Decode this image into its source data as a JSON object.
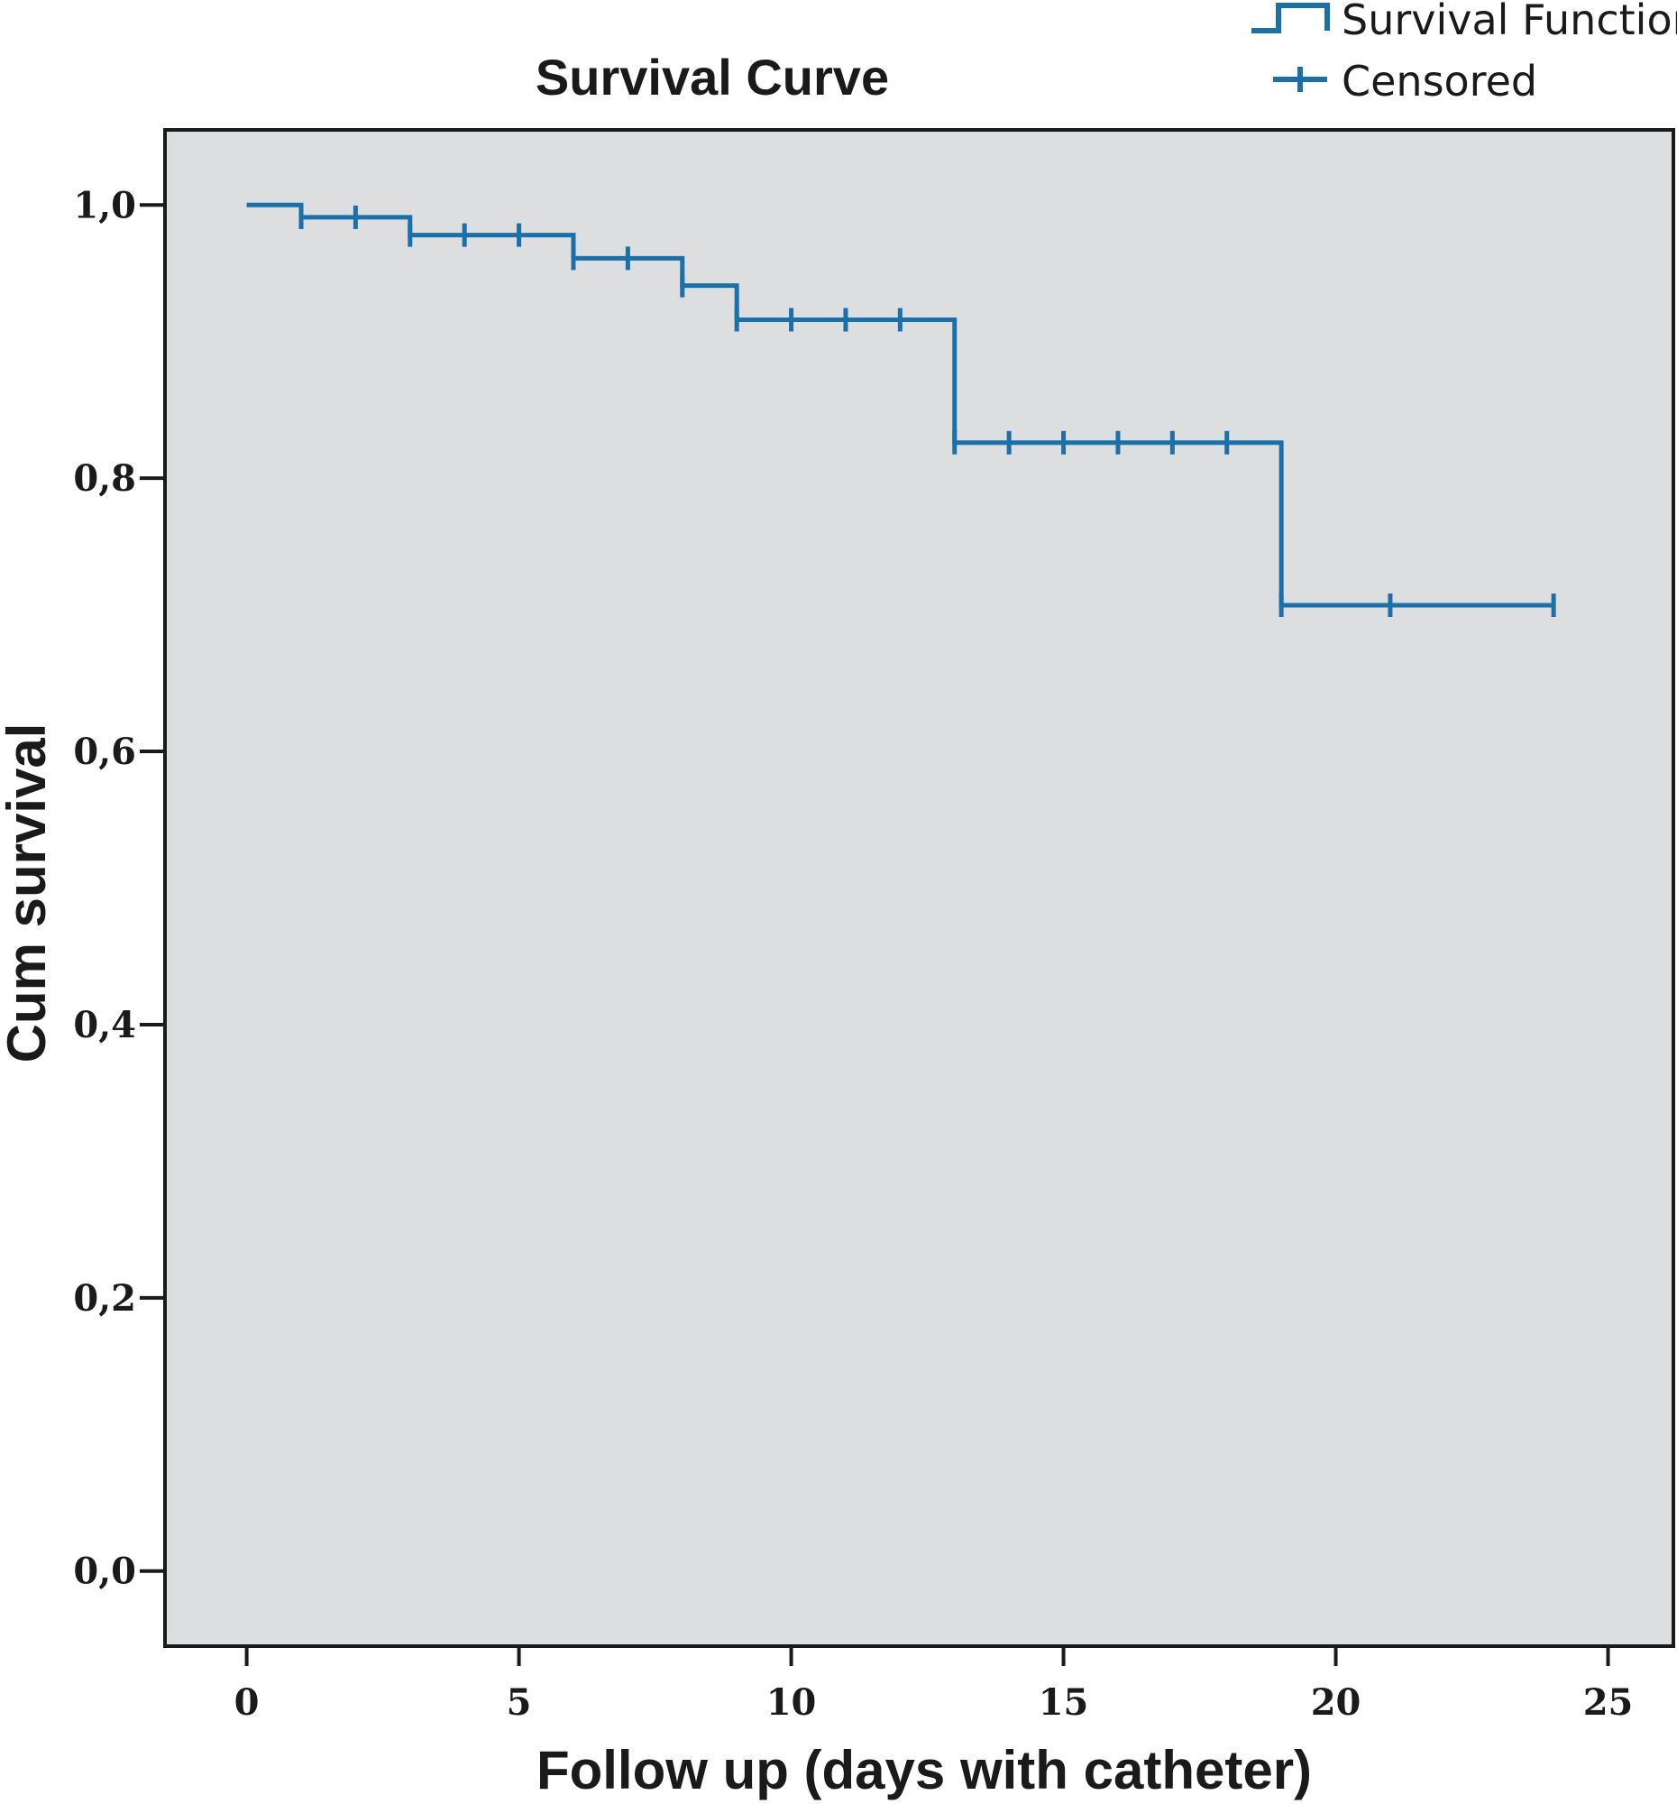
{
  "chart_data": {
    "type": "line",
    "title": "Survival Curve",
    "xlabel": "Follow up (days with catheter)",
    "ylabel": "Cum survival",
    "xlim": [
      -1.5,
      26.2
    ],
    "ylim": [
      -0.055,
      1.055
    ],
    "x_ticks": [
      {
        "value": 0,
        "label": "0"
      },
      {
        "value": 5,
        "label": "5"
      },
      {
        "value": 10,
        "label": "10"
      },
      {
        "value": 15,
        "label": "15"
      },
      {
        "value": 20,
        "label": "20"
      },
      {
        "value": 25,
        "label": "25"
      }
    ],
    "y_ticks": [
      {
        "value": 0.0,
        "label": "0,0"
      },
      {
        "value": 0.2,
        "label": "0,2"
      },
      {
        "value": 0.4,
        "label": "0,4"
      },
      {
        "value": 0.6,
        "label": "0,6"
      },
      {
        "value": 0.8,
        "label": "0,8"
      },
      {
        "value": 1.0,
        "label": "1,0"
      }
    ],
    "grid": false,
    "legend_position": "top-right",
    "series": [
      {
        "name": "Survival Function",
        "kind": "step",
        "x": [
          0,
          1,
          3,
          6,
          8,
          9,
          13,
          19,
          24
        ],
        "y": [
          1.0,
          0.991,
          0.978,
          0.961,
          0.941,
          0.916,
          0.826,
          0.707,
          0.707
        ]
      },
      {
        "name": "Censored",
        "kind": "markers",
        "x": [
          1,
          2,
          3,
          4,
          5,
          6,
          7,
          8,
          9,
          10,
          11,
          12,
          13,
          14,
          15,
          16,
          17,
          18,
          19,
          21,
          24
        ],
        "y": [
          0.991,
          0.991,
          0.978,
          0.978,
          0.978,
          0.961,
          0.961,
          0.941,
          0.916,
          0.916,
          0.916,
          0.916,
          0.826,
          0.826,
          0.826,
          0.826,
          0.826,
          0.826,
          0.707,
          0.707,
          0.707
        ]
      }
    ],
    "colors": {
      "line": "#1b70a9",
      "plot_background": "#dcdee0",
      "axis": "#1a1a1a"
    }
  }
}
